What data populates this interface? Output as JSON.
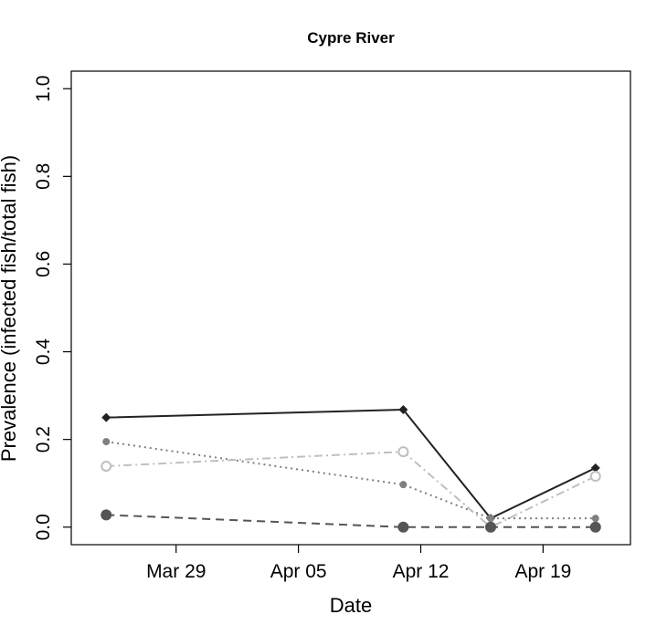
{
  "chart_data": {
    "type": "line",
    "title": "Cypre River",
    "xlabel": "Date",
    "ylabel": "Prevalence (infected fish/total fish)",
    "xlim": [
      "2014-03-23",
      "2014-04-24"
    ],
    "ylim": [
      -0.04,
      1.04
    ],
    "x_ticks": [
      {
        "date": "2014-03-29",
        "label": "Mar 29"
      },
      {
        "date": "2014-04-05",
        "label": "Apr 05"
      },
      {
        "date": "2014-04-12",
        "label": "Apr 12"
      },
      {
        "date": "2014-04-19",
        "label": "Apr 19"
      }
    ],
    "y_ticks": [
      {
        "value": 0.0,
        "label": "0.0"
      },
      {
        "value": 0.2,
        "label": "0.2"
      },
      {
        "value": 0.4,
        "label": "0.4"
      },
      {
        "value": 0.6,
        "label": "0.6"
      },
      {
        "value": 0.8,
        "label": "0.8"
      },
      {
        "value": 1.0,
        "label": "1.0"
      }
    ],
    "grid": false,
    "legend": false,
    "series": [
      {
        "color": "#222222",
        "line_style": "solid",
        "marker": "diamond",
        "points": [
          {
            "x": "2014-03-25",
            "y": 0.25
          },
          {
            "x": "2014-04-11",
            "y": 0.268
          },
          {
            "x": "2014-04-16",
            "y": 0.02
          },
          {
            "x": "2014-04-22",
            "y": 0.135
          }
        ]
      },
      {
        "color": "#7f7f7f",
        "line_style": "dotted",
        "marker": "small-filled-circle",
        "points": [
          {
            "x": "2014-03-25",
            "y": 0.195
          },
          {
            "x": "2014-04-11",
            "y": 0.097
          },
          {
            "x": "2014-04-16",
            "y": 0.02
          },
          {
            "x": "2014-04-22",
            "y": 0.02
          }
        ]
      },
      {
        "color": "#bfbfbf",
        "line_style": "dashdot",
        "marker": "open-circle",
        "points": [
          {
            "x": "2014-03-25",
            "y": 0.139
          },
          {
            "x": "2014-04-11",
            "y": 0.172
          },
          {
            "x": "2014-04-16",
            "y": 0.0
          },
          {
            "x": "2014-04-22",
            "y": 0.116
          }
        ]
      },
      {
        "color": "#555555",
        "line_style": "dashed",
        "marker": "large-filled-circle",
        "points": [
          {
            "x": "2014-03-25",
            "y": 0.028
          },
          {
            "x": "2014-04-11",
            "y": 0.0
          },
          {
            "x": "2014-04-16",
            "y": 0.0
          },
          {
            "x": "2014-04-22",
            "y": 0.0
          }
        ]
      }
    ]
  }
}
